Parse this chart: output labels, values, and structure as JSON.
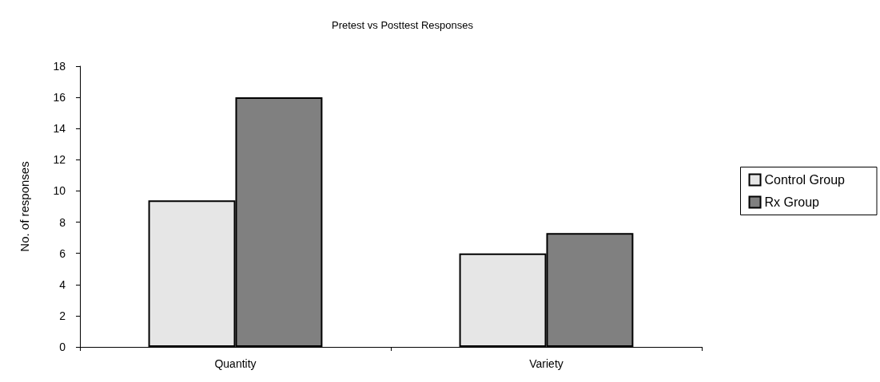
{
  "chart_data": {
    "type": "bar",
    "title": "Pretest vs Posttest Responses",
    "ylabel": "No. of responses",
    "categories": [
      "Quantity",
      "Variety"
    ],
    "series": [
      {
        "name": "Control Group",
        "color": "#e6e6e6",
        "values": [
          9.4,
          6.0
        ]
      },
      {
        "name": "Rx Group",
        "color": "#808080",
        "values": [
          16,
          7.3
        ]
      }
    ],
    "ylim": [
      0,
      18
    ],
    "yticks": [
      0,
      2,
      4,
      6,
      8,
      10,
      12,
      14,
      16,
      18
    ],
    "grid": false,
    "legend": "right"
  }
}
